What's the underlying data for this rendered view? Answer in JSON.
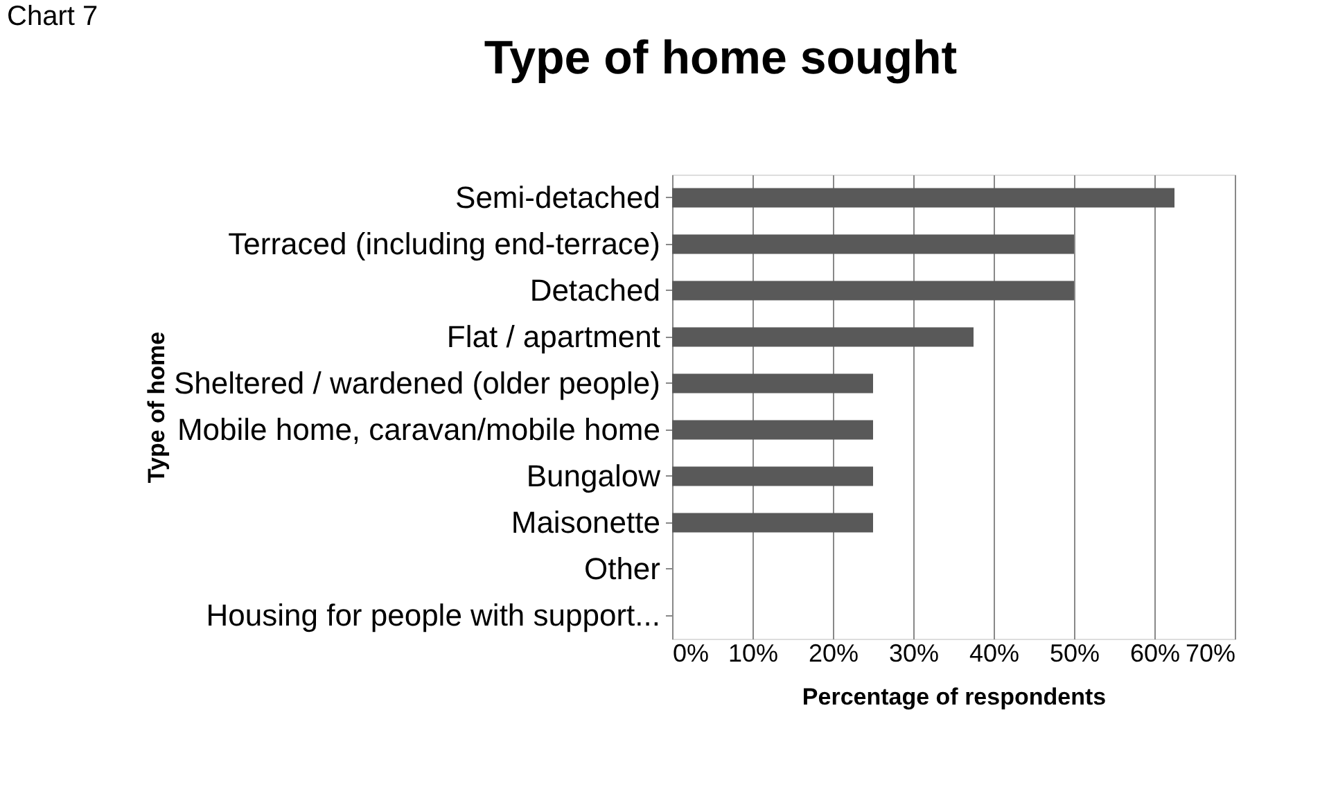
{
  "chart_data": {
    "type": "bar",
    "orientation": "horizontal",
    "title": "Type of home sought",
    "xlabel": "Percentage of respondents",
    "ylabel": "Type of home",
    "categories": [
      "Semi-detached",
      "Terraced (including end-terrace)",
      "Detached",
      "Flat / apartment",
      "Sheltered / wardened (older people)",
      "Mobile home, caravan/mobile home",
      "Bungalow",
      "Maisonette",
      "Other",
      "Housing for people with support..."
    ],
    "values": [
      62.5,
      50,
      50,
      37.5,
      25,
      25,
      25,
      25,
      0,
      0
    ],
    "color": "#595959",
    "xlim": [
      0,
      70
    ],
    "xticks": [
      {
        "value": 0,
        "label": "0%"
      },
      {
        "value": 10,
        "label": "10%"
      },
      {
        "value": 20,
        "label": "20%"
      },
      {
        "value": 30,
        "label": "30%"
      },
      {
        "value": 40,
        "label": "40%"
      },
      {
        "value": 50,
        "label": "50%"
      },
      {
        "value": 60,
        "label": "60%"
      },
      {
        "value": 70,
        "label": "70%"
      }
    ],
    "grid": "x",
    "legend": false,
    "annotations": [
      "Chart 7"
    ]
  }
}
